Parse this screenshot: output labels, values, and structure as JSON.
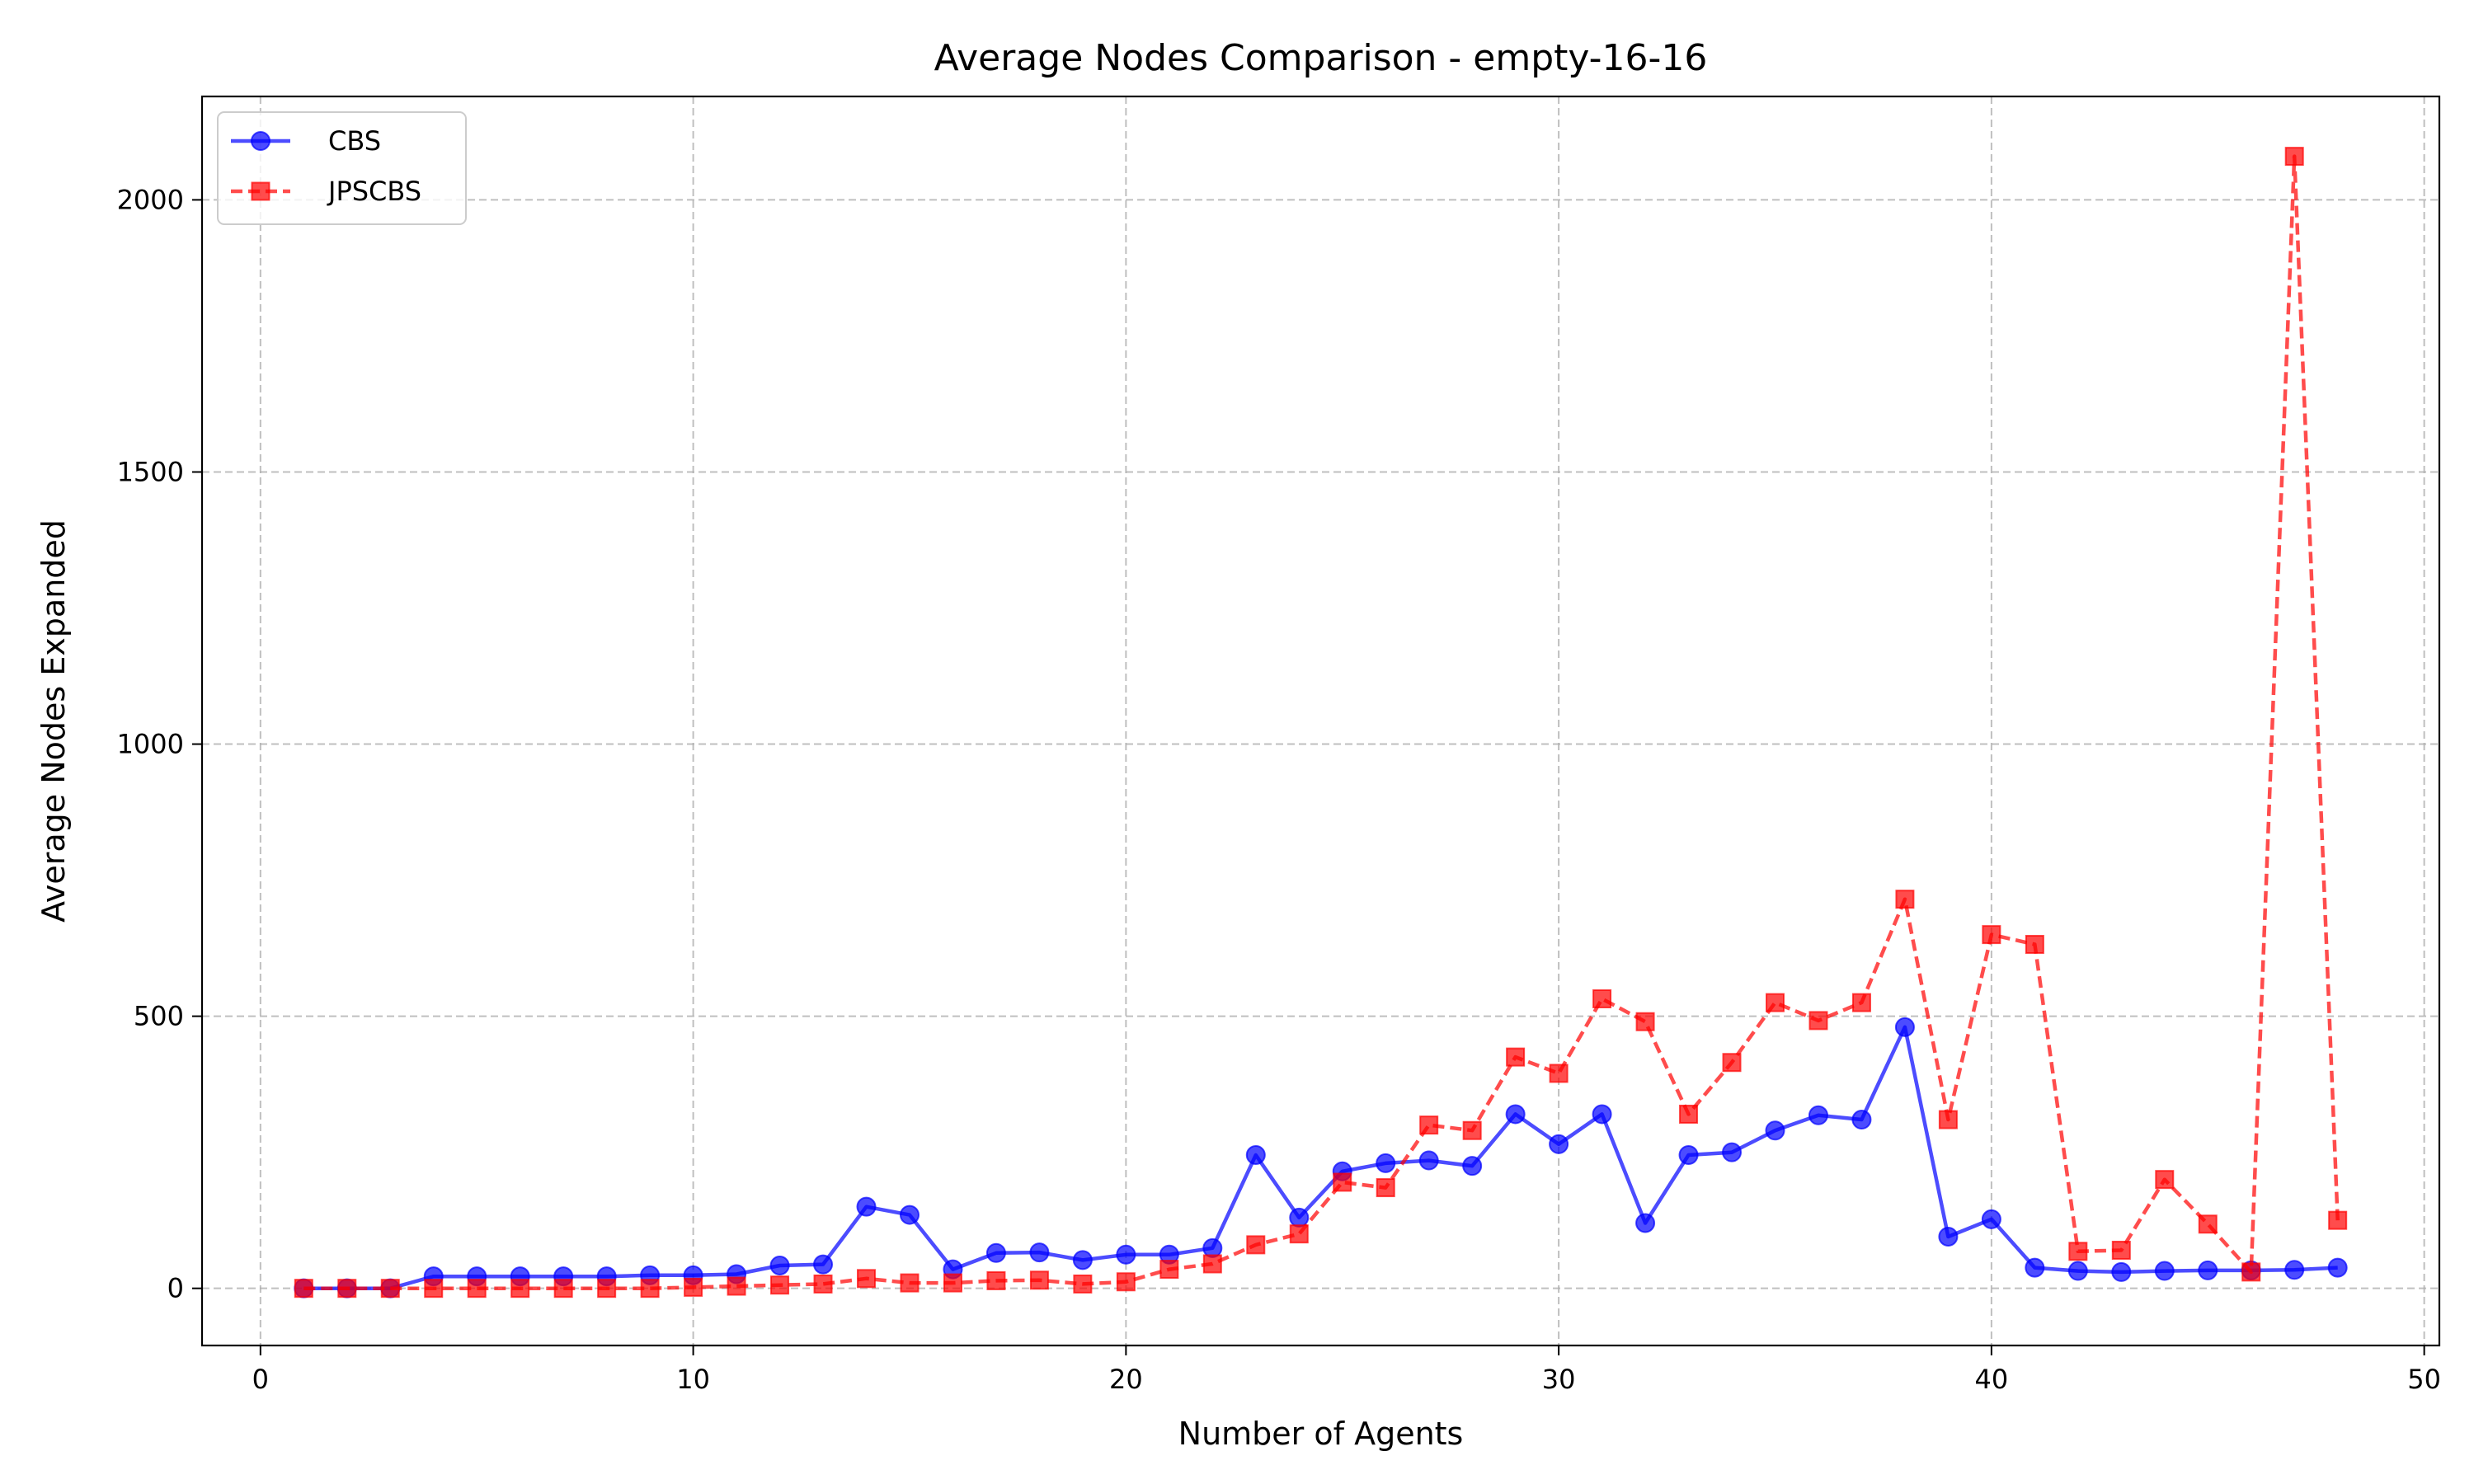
{
  "chart_data": {
    "type": "line",
    "title": "Average Nodes Comparison - empty-16-16",
    "xlabel": "Number of Agents",
    "ylabel": "Average Nodes Expanded",
    "xlim": [
      -1.35,
      50.35
    ],
    "ylim": [
      -105,
      2190
    ],
    "xticks": [
      0,
      10,
      20,
      30,
      40,
      50
    ],
    "yticks": [
      0,
      500,
      1000,
      1500,
      2000
    ],
    "grid": true,
    "legend_position": "top-left",
    "x": [
      1,
      2,
      3,
      4,
      5,
      6,
      7,
      8,
      9,
      10,
      11,
      12,
      13,
      14,
      15,
      16,
      17,
      18,
      19,
      20,
      21,
      22,
      23,
      24,
      25,
      26,
      27,
      28,
      29,
      30,
      31,
      32,
      33,
      34,
      35,
      36,
      37,
      38,
      39,
      40,
      41,
      42,
      43,
      44,
      45,
      46,
      47,
      48
    ],
    "series": [
      {
        "name": "CBS",
        "color": "#0000ff",
        "linestyle": "solid",
        "marker": "circle",
        "values": [
          0,
          0,
          0,
          22,
          22,
          22,
          22,
          22,
          24,
          24,
          26,
          42,
          44,
          150,
          135,
          35,
          65,
          66,
          52,
          62,
          62,
          74,
          245,
          130,
          215,
          230,
          235,
          225,
          320,
          265,
          320,
          120,
          245,
          250,
          290,
          318,
          310,
          480,
          95,
          127,
          38,
          32,
          30,
          32,
          33,
          33,
          34,
          38
        ]
      },
      {
        "name": "JPSCBS",
        "color": "#ff0000",
        "linestyle": "dashed",
        "marker": "square",
        "values": [
          0,
          0,
          0,
          0,
          0,
          0,
          0,
          0,
          0,
          2,
          4,
          6,
          8,
          18,
          10,
          10,
          14,
          15,
          8,
          12,
          35,
          45,
          80,
          100,
          195,
          185,
          300,
          290,
          425,
          395,
          532,
          490,
          320,
          415,
          525,
          492,
          525,
          715,
          310,
          650,
          632,
          68,
          70,
          200,
          118,
          30,
          2080,
          125
        ]
      }
    ]
  }
}
